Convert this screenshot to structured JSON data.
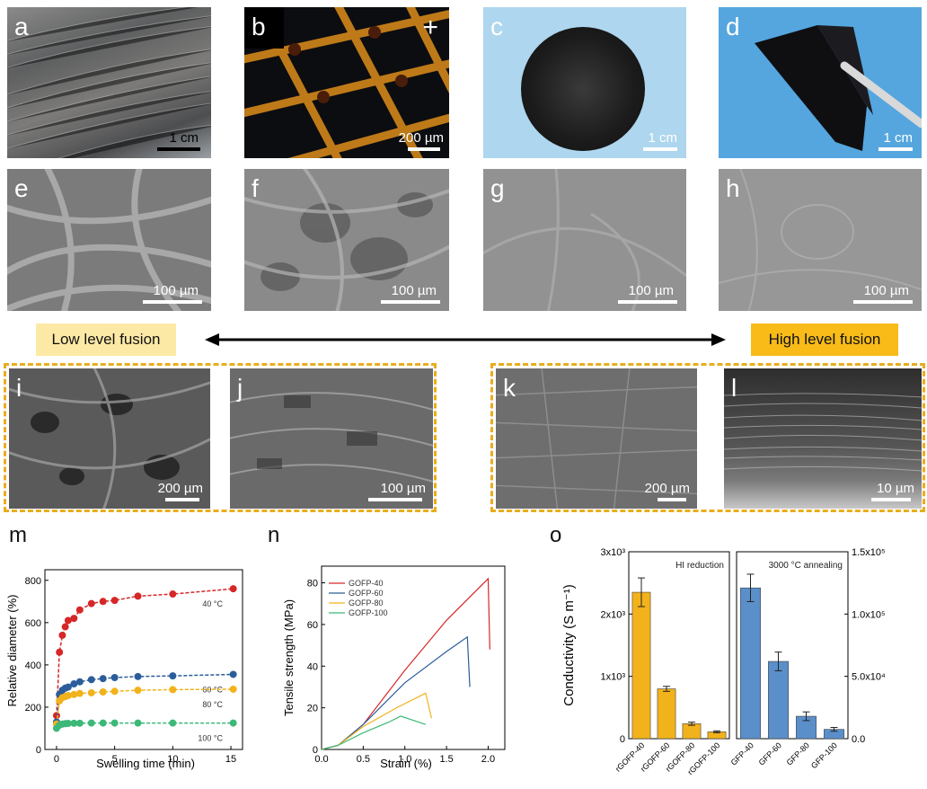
{
  "row1": [
    {
      "label": "a",
      "scale": "1 cm"
    },
    {
      "label": "b",
      "scale": "200 µm"
    },
    {
      "label": "c",
      "scale": "1 cm"
    },
    {
      "label": "d",
      "scale": "1 cm"
    }
  ],
  "row2": [
    {
      "label": "e",
      "scale": "100 µm"
    },
    {
      "label": "f",
      "scale": "100 µm"
    },
    {
      "label": "g",
      "scale": "100 µm"
    },
    {
      "label": "h",
      "scale": "100 µm"
    }
  ],
  "fusion": {
    "low": "Low level fusion",
    "high": "High level fusion"
  },
  "row3": [
    {
      "label": "i",
      "scale": "200 µm"
    },
    {
      "label": "j",
      "scale": "100 µm"
    },
    {
      "label": "k",
      "scale": "200 µm"
    },
    {
      "label": "l",
      "scale": "10 µm"
    }
  ],
  "chart_labels": {
    "m": "m",
    "n": "n",
    "o": "o"
  },
  "chart_data": [
    {
      "type": "scatter",
      "panel": "m",
      "xlabel": "Swelling time (min)",
      "ylabel": "Relative diameter (%)",
      "xlim": [
        -1,
        16
      ],
      "ylim": [
        0,
        850
      ],
      "xticks": [
        0,
        5,
        10,
        15
      ],
      "yticks": [
        0,
        200,
        400,
        600,
        800
      ],
      "series": [
        {
          "name": "40 °C",
          "color": "#d62728",
          "x": [
            0,
            0.25,
            0.5,
            0.75,
            1,
            1.5,
            2,
            3,
            4,
            5,
            7,
            10,
            15.2
          ],
          "y": [
            160,
            460,
            540,
            580,
            610,
            620,
            660,
            690,
            700,
            705,
            725,
            735,
            760
          ]
        },
        {
          "name": "60 °C",
          "color": "#2b5d9a",
          "x": [
            0,
            0.25,
            0.5,
            0.75,
            1,
            1.5,
            2,
            3,
            4,
            5,
            7,
            10,
            15.2
          ],
          "y": [
            130,
            260,
            280,
            290,
            295,
            310,
            320,
            330,
            335,
            340,
            345,
            348,
            355
          ]
        },
        {
          "name": "80 °C",
          "color": "#f2b21b",
          "x": [
            0,
            0.25,
            0.5,
            0.75,
            1,
            1.5,
            2,
            3,
            4,
            5,
            7,
            10,
            15.2
          ],
          "y": [
            120,
            230,
            245,
            250,
            255,
            260,
            265,
            268,
            272,
            275,
            280,
            283,
            285
          ]
        },
        {
          "name": "100 °C",
          "color": "#3cb878",
          "x": [
            0,
            0.25,
            0.5,
            0.75,
            1,
            1.5,
            2,
            3,
            4,
            5,
            7,
            10,
            15.2
          ],
          "y": [
            100,
            115,
            120,
            122,
            123,
            124,
            124,
            125,
            125,
            125,
            125,
            125,
            125
          ]
        }
      ]
    },
    {
      "type": "line",
      "panel": "n",
      "xlabel": "Strain (%)",
      "ylabel": "Tensile strength (MPa)",
      "xlim": [
        0,
        2.2
      ],
      "ylim": [
        0,
        88
      ],
      "xticks": [
        0.0,
        0.5,
        1.0,
        1.5,
        2.0
      ],
      "yticks": [
        0,
        20,
        40,
        60,
        80
      ],
      "series": [
        {
          "name": "GOFP-40",
          "color": "#d62728",
          "x": [
            0,
            0.2,
            0.5,
            1.0,
            1.5,
            2.0,
            2.02
          ],
          "y": [
            0,
            2,
            12,
            38,
            62,
            82,
            48
          ]
        },
        {
          "name": "GOFP-60",
          "color": "#2b5d9a",
          "x": [
            0,
            0.2,
            0.5,
            1.0,
            1.5,
            1.75,
            1.78
          ],
          "y": [
            0,
            2,
            12,
            32,
            47,
            54,
            30
          ]
        },
        {
          "name": "GOFP-80",
          "color": "#f2b21b",
          "x": [
            0,
            0.2,
            0.5,
            0.9,
            1.25,
            1.32
          ],
          "y": [
            0,
            2,
            11,
            20,
            27,
            15
          ]
        },
        {
          "name": "GOFP-100",
          "color": "#3cb878",
          "x": [
            0,
            0.2,
            0.5,
            0.8,
            0.95,
            1.25
          ],
          "y": [
            0,
            2,
            8,
            13,
            16,
            12
          ]
        }
      ]
    },
    {
      "type": "bar",
      "panel": "o",
      "ylabel": "Conductivity (S m⁻¹)",
      "left": {
        "title": "HI reduction",
        "color": "#f2b21b",
        "categories": [
          "rGOFP-40",
          "rGOFP-60",
          "rGOFP-80",
          "rGOFP-100"
        ],
        "values": [
          2350,
          800,
          240,
          110
        ],
        "errors": [
          230,
          40,
          25,
          15
        ],
        "ylim": [
          0,
          3000
        ],
        "yticks": [
          "0",
          "1x10³",
          "2x10³",
          "3x10³"
        ]
      },
      "right": {
        "title": "3000 °C annealing",
        "color": "#5b8fc9",
        "categories": [
          "GFP-40",
          "GFP-60",
          "GFP-80",
          "GFP-100"
        ],
        "values": [
          121000,
          62000,
          18000,
          7500
        ],
        "errors": [
          11000,
          7500,
          3500,
          1500
        ],
        "ylim": [
          0,
          150000
        ],
        "yticks": [
          "0.0",
          "5.0x10⁴",
          "1.0x10⁵",
          "1.5x10⁵"
        ]
      }
    }
  ]
}
